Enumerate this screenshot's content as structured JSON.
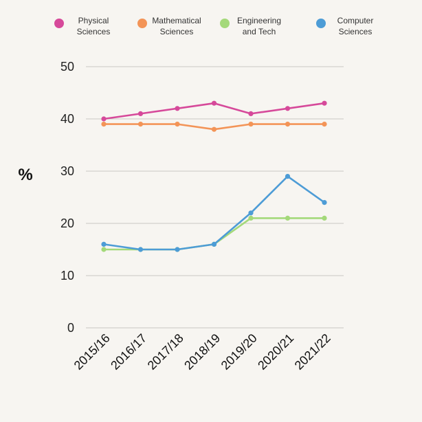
{
  "chart_data": {
    "type": "line",
    "title": "",
    "xlabel": "",
    "ylabel": "%",
    "ylim": [
      0,
      50
    ],
    "yticks": [
      0,
      10,
      20,
      30,
      40,
      50
    ],
    "grid": true,
    "legend_position": "top",
    "categories": [
      "2015/16",
      "2016/17",
      "2017/18",
      "2018/19",
      "2019/20",
      "2020/21",
      "2021/22"
    ],
    "series": [
      {
        "name": "Physical Sciences",
        "legend_lines": [
          "Physical",
          "Sciences"
        ],
        "color": "#d6499a",
        "values": [
          40,
          41,
          42,
          43,
          41,
          42,
          43
        ]
      },
      {
        "name": "Mathematical Sciences",
        "legend_lines": [
          "Mathematical",
          "Sciences"
        ],
        "color": "#f39457",
        "values": [
          39,
          39,
          39,
          38,
          39,
          39,
          39
        ]
      },
      {
        "name": "Engineering and Tech",
        "legend_lines": [
          "Engineering",
          "and Tech"
        ],
        "color": "#a4d97a",
        "values": [
          15,
          15,
          15,
          16,
          21,
          21,
          21
        ]
      },
      {
        "name": "Computer Sciences",
        "legend_lines": [
          "Computer",
          "Sciences"
        ],
        "color": "#4d9cd6",
        "values": [
          16,
          15,
          15,
          16,
          22,
          29,
          24
        ]
      }
    ]
  }
}
